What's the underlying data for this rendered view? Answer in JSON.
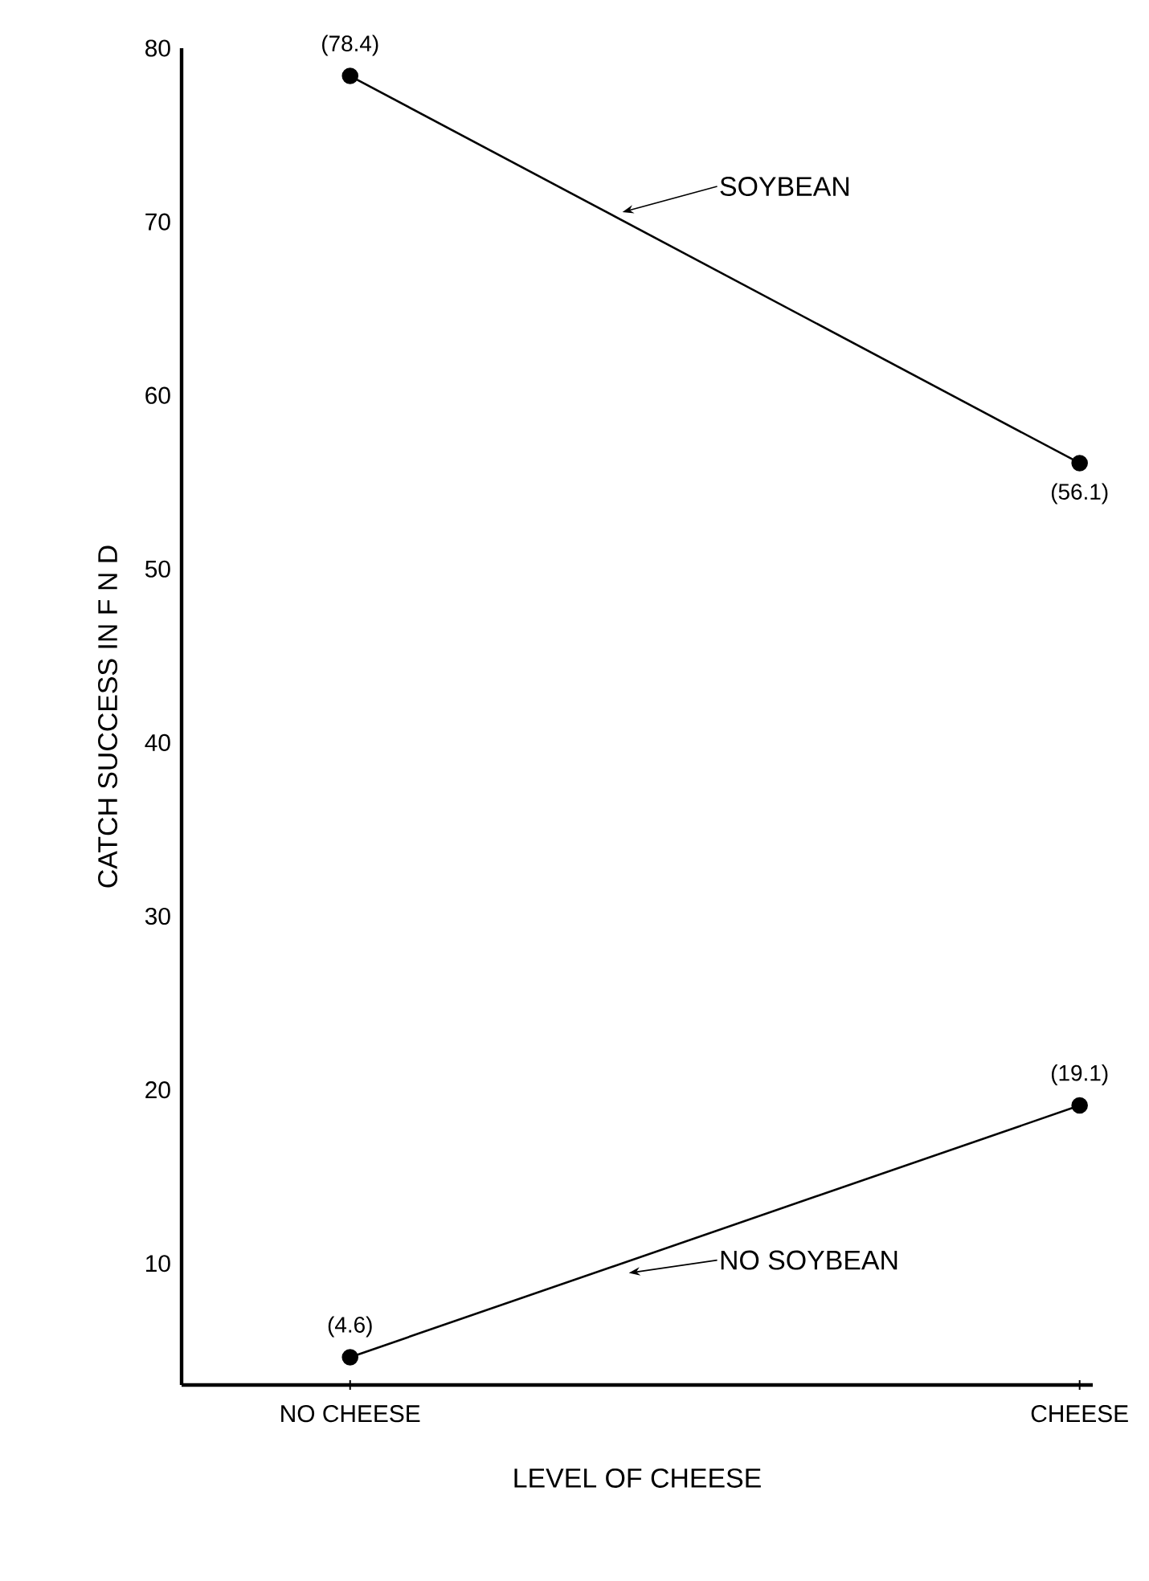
{
  "chart_data": {
    "type": "line",
    "xlabel": "LEVEL OF CHEESE",
    "ylabel": "CATCH  SUCCESS  IN  F N D",
    "categories": [
      "NO CHEESE",
      "CHEESE"
    ],
    "series": [
      {
        "color": "#000000",
        "values": [
          78.4,
          56.1
        ],
        "value_labels": [
          "(78.4)",
          "(56.1)"
        ]
      },
      {
        "color": "#000000",
        "values": [
          4.6,
          19.1
        ],
        "value_labels": [
          "(4.6)",
          "(19.1)"
        ]
      }
    ],
    "annotations": [
      "SOYBEAN",
      "NO SOYBEAN"
    ],
    "ylim": [
      3,
      80
    ],
    "yticks": [
      10,
      20,
      30,
      40,
      50,
      60,
      70,
      80
    ],
    "marker": "circle",
    "line_style": "solid"
  }
}
